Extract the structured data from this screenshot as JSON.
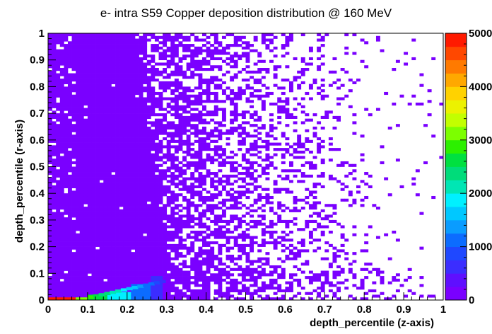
{
  "chart_data": {
    "type": "heatmap",
    "title": "e- intra S59 Copper deposition distribution @ 160 MeV",
    "xlabel": "depth_percentile (z-axis)",
    "ylabel": "depth_percentile (r-axis)",
    "xlim": [
      0,
      1
    ],
    "ylim": [
      0,
      1
    ],
    "x_ticks": [
      "0",
      "0.1",
      "0.2",
      "0.3",
      "0.4",
      "0.5",
      "0.6",
      "0.7",
      "0.8",
      "0.9",
      "1"
    ],
    "y_ticks": [
      "0",
      "0.1",
      "0.2",
      "0.3",
      "0.4",
      "0.5",
      "0.6",
      "0.7",
      "0.8",
      "0.9",
      "1"
    ],
    "color_scale": {
      "min": 0,
      "max": 5000,
      "tick_labels": [
        "0",
        "1000",
        "2000",
        "3000",
        "4000",
        "5000"
      ],
      "colors": [
        "#7a00ff",
        "#5f0fff",
        "#3b2dff",
        "#1f48ff",
        "#0c6cff",
        "#0a9cff",
        "#00c8ff",
        "#00f0ff",
        "#00e6b4",
        "#00dc7a",
        "#00e040",
        "#2cf000",
        "#7cff00",
        "#c2ff00",
        "#ecf200",
        "#ffd200",
        "#ffa800",
        "#ff7a00",
        "#ff4800",
        "#ff1a00"
      ]
    },
    "bins": {
      "nx": 100,
      "ny": 100
    },
    "regions": [
      {
        "description_key": "near-zero-r high density row",
        "x": [
          0.0,
          0.07
        ],
        "y": [
          0.0,
          0.01
        ],
        "value": 5000
      },
      {
        "x": [
          0.07,
          0.1
        ],
        "y": [
          0.0,
          0.01
        ],
        "value": 3200
      },
      {
        "x": [
          0.1,
          0.15
        ],
        "y": [
          0.0,
          0.02
        ],
        "value": 2600
      },
      {
        "x": [
          0.15,
          0.21
        ],
        "y": [
          0.0,
          0.03
        ],
        "value": 1800
      },
      {
        "x": [
          0.21,
          0.26
        ],
        "y": [
          0.0,
          0.06
        ],
        "value": 1100
      },
      {
        "x": [
          0.26,
          0.29
        ],
        "y": [
          0.0,
          0.09
        ],
        "value": 700
      }
    ]
  }
}
